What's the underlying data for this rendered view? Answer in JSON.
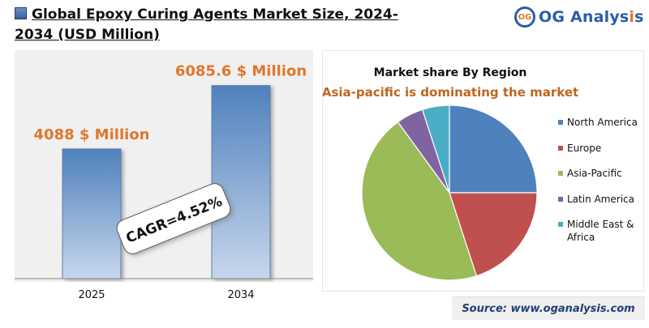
{
  "header": {
    "title": "Global Epoxy Curing Agents Market Size, 2024-2034 (USD Million)",
    "logo_mark": "OG",
    "logo_text_main": "OG Analys",
    "logo_text_accent": "i",
    "logo_text_end": "s"
  },
  "colors": {
    "bar_top": "#4f81bd",
    "bar_bottom": "#c7d7ec",
    "value_label": "#e0772c",
    "north_america": "#4f81bd",
    "europe": "#c0504d",
    "asia_pacific": "#9bbb59",
    "latin_america": "#8064a2",
    "middle_east_africa": "#4bacc6"
  },
  "chart_data": [
    {
      "type": "bar",
      "categories": [
        "2025",
        "2034"
      ],
      "values": [
        4088,
        6085.6
      ],
      "value_labels": [
        "4088 $ Million",
        "6085.6 $ Million"
      ],
      "ylim": [
        0,
        7200
      ],
      "annotation": "CAGR=4.52%",
      "title": "",
      "xlabel": "",
      "ylabel": ""
    },
    {
      "type": "pie",
      "title": "Market share By Region",
      "subtitle": "Asia-pacific is dominating the market",
      "labels": [
        "North America",
        "Europe",
        "Asia-Pacific",
        "Latin America",
        "Middle East & Africa"
      ],
      "values": [
        25,
        20,
        45,
        5,
        5
      ],
      "legend_position": "right"
    }
  ],
  "footer": {
    "source": "Source: www.oganalysis.com"
  }
}
